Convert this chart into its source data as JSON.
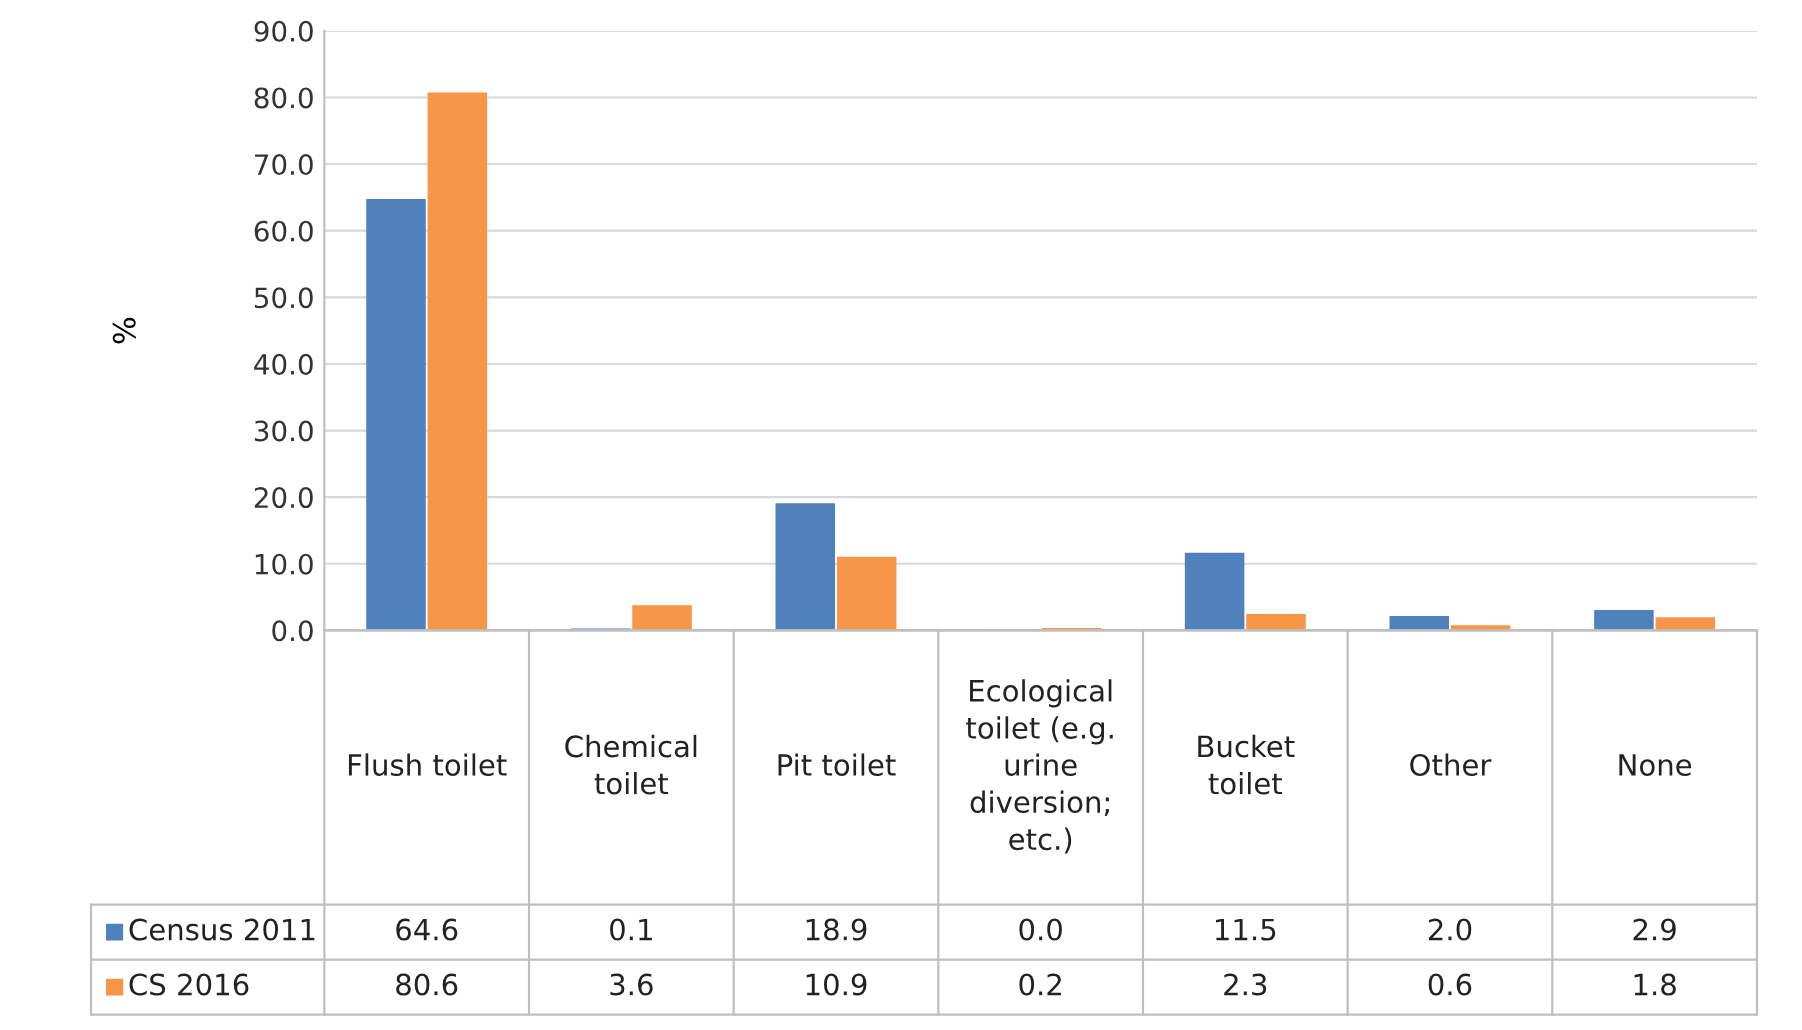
{
  "chart_data": {
    "type": "bar",
    "ylabel": "%",
    "categories": [
      "Flush toilet",
      "Chemical toilet",
      "Pit toilet",
      "Ecological toilet (e.g. urine diversion; etc.)",
      "Bucket toilet",
      "Other",
      "None"
    ],
    "series": [
      {
        "name": "Census 2011",
        "color": "#4f81bd",
        "values": [
          64.6,
          0.1,
          18.9,
          0.0,
          11.5,
          2.0,
          2.9
        ],
        "value_labels": [
          "64.6",
          "0.1",
          "18.9",
          "0.0",
          "11.5",
          "2.0",
          "2.9"
        ]
      },
      {
        "name": "CS 2016",
        "color": "#f79646",
        "values": [
          80.6,
          3.6,
          10.9,
          0.2,
          2.3,
          0.6,
          1.8
        ],
        "value_labels": [
          "80.6",
          "3.6",
          "10.9",
          "0.2",
          "2.3",
          "0.6",
          "1.8"
        ]
      }
    ],
    "ylim": [
      0,
      90
    ],
    "yticks": [
      {
        "value": 0,
        "label": "0.0"
      },
      {
        "value": 10,
        "label": "10.0"
      },
      {
        "value": 20,
        "label": "20.0"
      },
      {
        "value": 30,
        "label": "30.0"
      },
      {
        "value": 40,
        "label": "40.0"
      },
      {
        "value": 50,
        "label": "50.0"
      },
      {
        "value": 60,
        "label": "60.0"
      },
      {
        "value": 70,
        "label": "70.0"
      },
      {
        "value": 80,
        "label": "80.0"
      },
      {
        "value": 90,
        "label": "90.0"
      }
    ],
    "grid": "y",
    "legend": "bottom left"
  }
}
